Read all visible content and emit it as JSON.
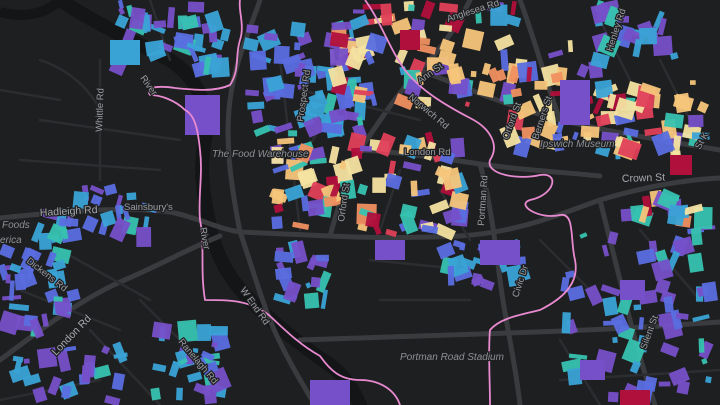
{
  "map": {
    "colors": {
      "background": "#1e1f21",
      "water": "#141516",
      "road_major": "#3a3b3e",
      "road_minor": "#2c2d30",
      "boundary": "#e88ad0",
      "label": "#9a9da2"
    },
    "legend_palette": [
      "#7650c9",
      "#5a6ee0",
      "#3aa3d6",
      "#37c2b0",
      "#f4e3a1",
      "#f6c57a",
      "#f09060",
      "#e0405a",
      "#b0103c"
    ],
    "labels": {
      "anglesea_rd": "Anglesea Rd",
      "henley_rd": "Henley Rd",
      "river_gipping_top": "River",
      "river_gipping_mid": "River",
      "whittle_rd": "Whittle Rd",
      "prospect_rd": "Prospect Rd",
      "norwich_rd": "Norwich Rd",
      "orford_st": "Orford St",
      "ann_st": "Ann St",
      "berners_st": "Berners St",
      "ipswich_museum": "Ipswich Museum",
      "food_warehouse": "The Food Warehouse",
      "london_rd_top": "London Rd",
      "crown_st": "Crown St",
      "hadleigh_rd": "Hadleigh Rd",
      "sainsburys": "Sainsbury's",
      "foods": "Foods",
      "america": "erica",
      "portman_rd": "Portman Rd",
      "civic_dr": "Civic Dr",
      "dickens_rd": "Dickens Rd",
      "w_end_rd": "W End Rd",
      "ranelagh_rd": "Ranelagh Rd",
      "london_rd_sw": "London Rd",
      "portman_road_station": "Portman Road Stadium",
      "silent_st": "Silent St",
      "st_kd": "St K"
    }
  }
}
